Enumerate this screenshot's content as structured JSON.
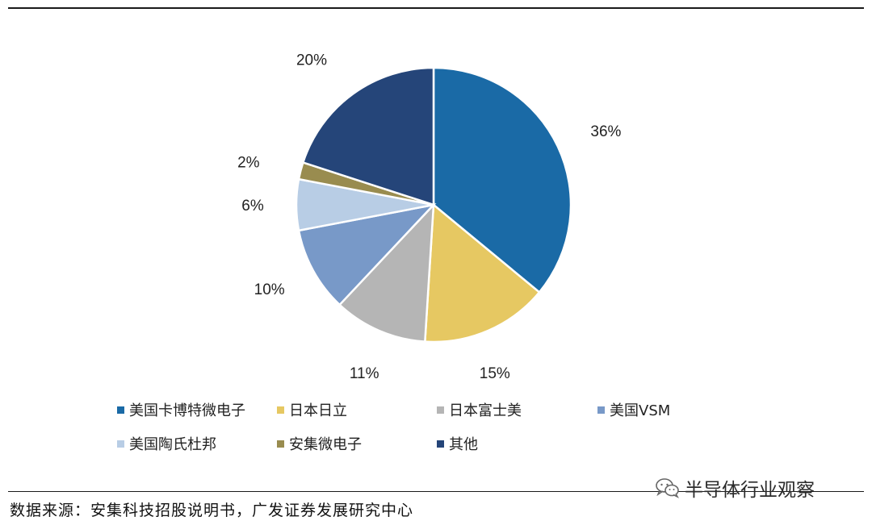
{
  "chart_data": {
    "type": "pie",
    "slices": [
      {
        "name": "美国卡博特微电子",
        "value": 36,
        "label": "36%",
        "color": "#1a6aa6"
      },
      {
        "name": "日本日立",
        "value": 15,
        "label": "15%",
        "color": "#e6c862"
      },
      {
        "name": "日本富士美",
        "value": 11,
        "label": "11%",
        "color": "#b5b5b5"
      },
      {
        "name": "美国VSM",
        "value": 10,
        "label": "10%",
        "color": "#7899c8"
      },
      {
        "name": "美国陶氏杜邦",
        "value": 6,
        "label": "6%",
        "color": "#b8cde5"
      },
      {
        "name": "安集微电子",
        "value": 2,
        "label": "2%",
        "color": "#998c4f"
      },
      {
        "name": "其他",
        "value": 20,
        "label": "20%",
        "color": "#254579"
      }
    ],
    "legend_position": "bottom"
  },
  "footer": {
    "source": "数据来源：安集科技招股说明书，广发证券发展研究中心",
    "watermark": "半导体行业观察",
    "watermark_icon": "wechat-icon"
  }
}
